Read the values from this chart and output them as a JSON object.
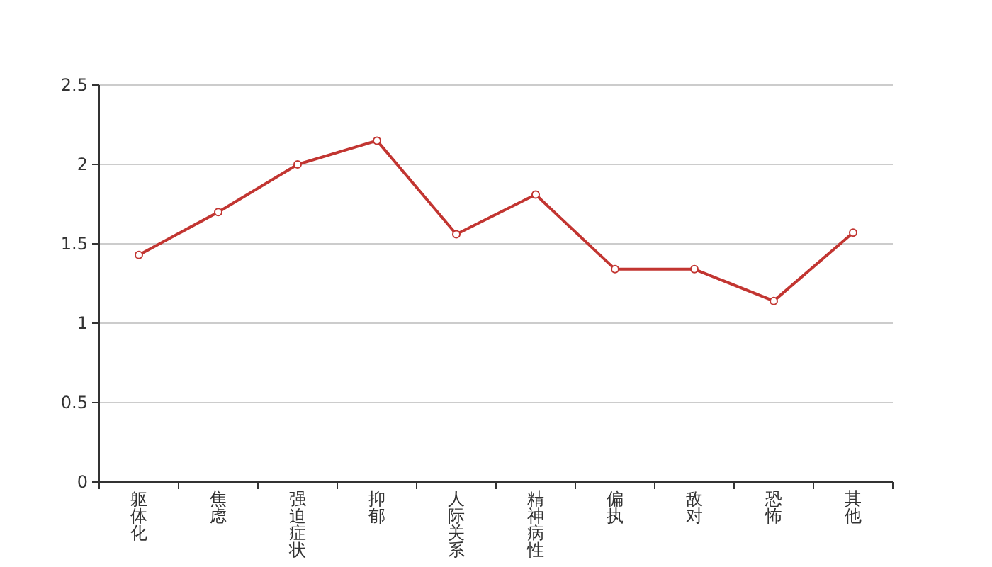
{
  "chart_data": {
    "type": "line",
    "categories": [
      "躯体化",
      "焦虑",
      "强迫症状",
      "抑郁",
      "人际关系",
      "精神病性",
      "偏执",
      "敌对",
      "恐怖",
      "其他"
    ],
    "values": [
      1.43,
      1.7,
      2.0,
      2.15,
      1.56,
      1.81,
      1.34,
      1.34,
      1.14,
      1.57
    ],
    "color": "#c23531",
    "ylim": [
      0,
      2.5
    ],
    "yticks": [
      0,
      0.5,
      1,
      1.5,
      2,
      2.5
    ],
    "grid": "y",
    "marker": "circle"
  }
}
